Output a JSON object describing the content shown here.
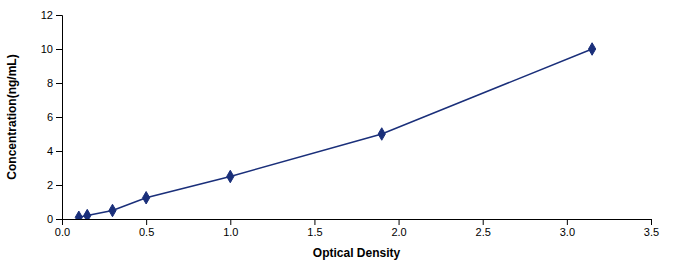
{
  "chart_data": {
    "type": "line",
    "x": [
      0.1,
      0.15,
      0.3,
      0.5,
      1.0,
      1.9,
      3.15
    ],
    "values": [
      0.1,
      0.2,
      0.5,
      1.25,
      2.5,
      5.0,
      10.0
    ],
    "xlabel": "Optical Density",
    "ylabel": "Concentration(ng/mL)",
    "xlim": [
      0,
      3.5
    ],
    "ylim": [
      0,
      12
    ],
    "xticks": [
      {
        "value": 0,
        "label": "0.0"
      },
      0.5,
      {
        "value": 1.0,
        "label": "1.0"
      },
      1.5,
      {
        "value": 2.0,
        "label": "2.0"
      },
      2.5,
      {
        "value": 3.0,
        "label": "3.0"
      },
      3.5
    ],
    "yticks": [
      0,
      2,
      4,
      6,
      8,
      10,
      12
    ],
    "color": "#1a2f7a",
    "marker": "diamond",
    "grid": false
  }
}
